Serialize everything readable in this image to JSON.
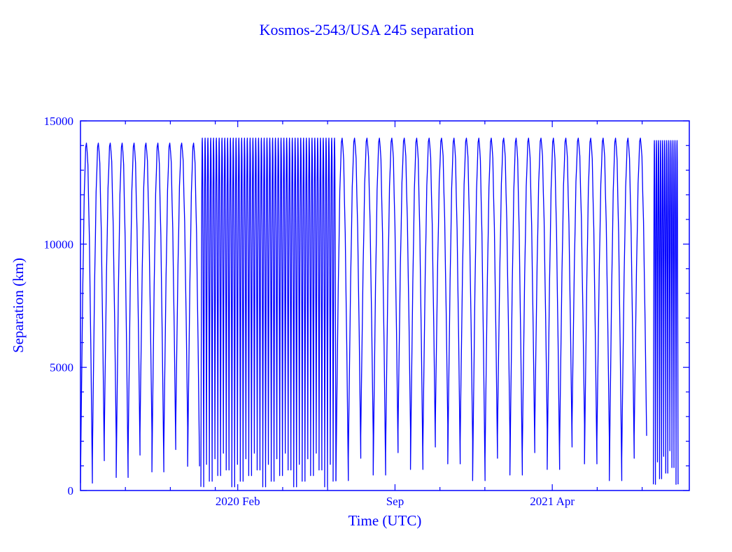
{
  "chart_data": {
    "type": "line",
    "title": "Kosmos-2543/USA 245 separation",
    "xlabel": "Time (UTC)",
    "ylabel": "Separation (km)",
    "x_units": "months since 2019 Jul",
    "xlim": [
      0,
      27.1
    ],
    "ylim": [
      0,
      15000
    ],
    "x_major_ticks": [
      {
        "value": 7,
        "label": "2020 Feb"
      },
      {
        "value": 14,
        "label": "Sep"
      },
      {
        "value": 21,
        "label": "2021 Apr"
      }
    ],
    "x_minor_ticks": [
      2,
      4,
      6,
      9,
      11,
      16,
      18,
      23,
      25
    ],
    "y_major_ticks": [
      {
        "value": 0,
        "label": "0"
      },
      {
        "value": 5000,
        "label": "5000"
      },
      {
        "value": 10000,
        "label": "10000"
      },
      {
        "value": 15000,
        "label": "15000"
      }
    ],
    "y_minor_step": 1000,
    "grid": false,
    "color": "#0000ff",
    "series": [
      {
        "name": "separation",
        "segments": [
          {
            "start": 0.0,
            "end": 5.3,
            "cycles": 10,
            "max": 14100,
            "min": 300
          },
          {
            "start": 5.36,
            "end": 11.37,
            "cycles": 48,
            "max": 14300,
            "min": 150
          },
          {
            "start": 11.37,
            "end": 25.2,
            "cycles": 25,
            "max": 14300,
            "min": 400
          },
          {
            "start": 25.5,
            "end": 26.6,
            "cycles": 12,
            "max": 14200,
            "min": 250
          }
        ]
      }
    ]
  }
}
